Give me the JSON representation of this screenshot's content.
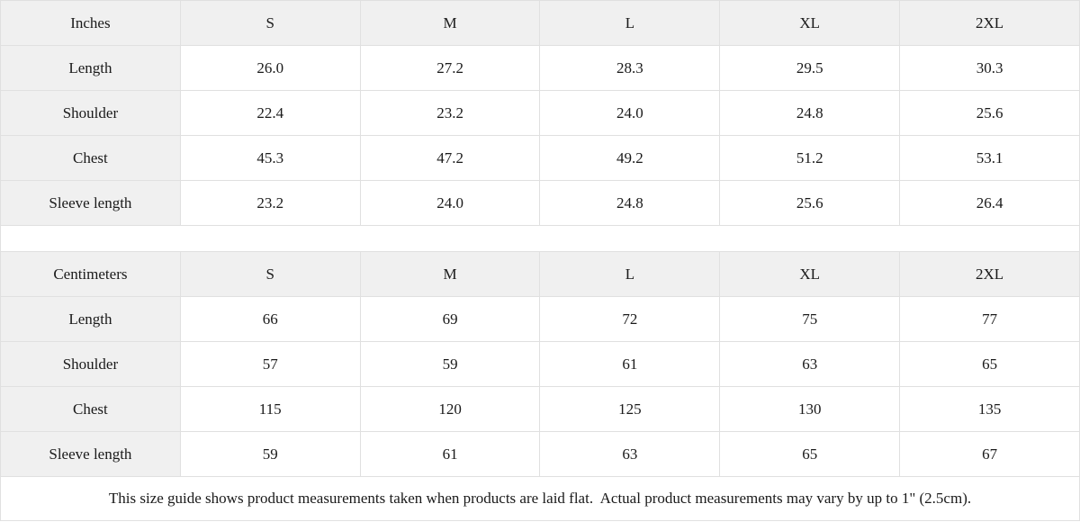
{
  "colors": {
    "header_bg": "#f0f0f0",
    "border": "#e0e0e0",
    "text": "#1a1a1a",
    "cell_bg": "#ffffff"
  },
  "chart_data": [
    {
      "type": "table",
      "title": "Inches",
      "columns": [
        "Inches",
        "S",
        "M",
        "L",
        "XL",
        "2XL"
      ],
      "rows": [
        [
          "Length",
          "26.0",
          "27.2",
          "28.3",
          "29.5",
          "30.3"
        ],
        [
          "Shoulder",
          "22.4",
          "23.2",
          "24.0",
          "24.8",
          "25.6"
        ],
        [
          "Chest",
          "45.3",
          "47.2",
          "49.2",
          "51.2",
          "53.1"
        ],
        [
          "Sleeve length",
          "23.2",
          "24.0",
          "24.8",
          "25.6",
          "26.4"
        ]
      ]
    },
    {
      "type": "table",
      "title": "Centimeters",
      "columns": [
        "Centimeters",
        "S",
        "M",
        "L",
        "XL",
        "2XL"
      ],
      "rows": [
        [
          "Length",
          "66",
          "69",
          "72",
          "75",
          "77"
        ],
        [
          "Shoulder",
          "57",
          "59",
          "61",
          "63",
          "65"
        ],
        [
          "Chest",
          "115",
          "120",
          "125",
          "130",
          "135"
        ],
        [
          "Sleeve length",
          "59",
          "61",
          "63",
          "65",
          "67"
        ]
      ]
    }
  ],
  "footer": {
    "note": "This size guide shows product measurements taken when products are laid flat.  Actual product measurements may vary by up to 1\" (2.5cm)."
  }
}
